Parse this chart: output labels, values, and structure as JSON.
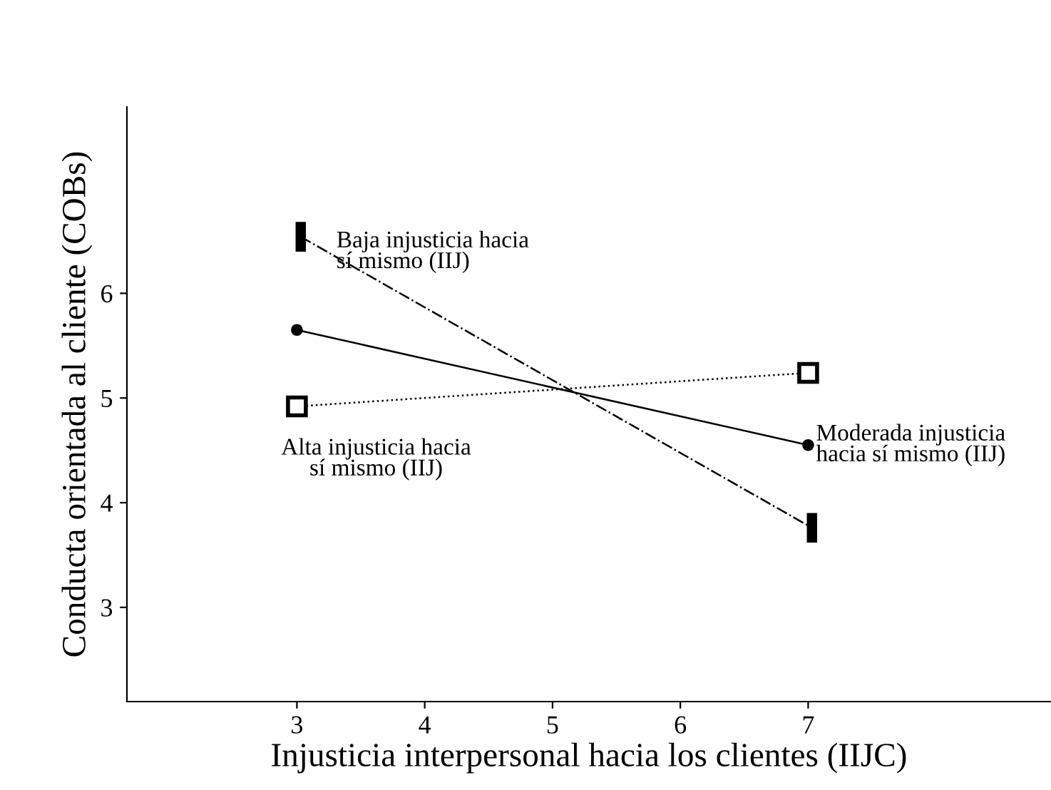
{
  "chart_data": {
    "type": "line",
    "xlabel": "Injusticia interpersonal hacia los clientes (IIJC)",
    "ylabel": "Conducta orientada al cliente (COBs)",
    "xlim": [
      1.67,
      8.9
    ],
    "ylim": [
      2.1,
      7.78
    ],
    "xticks": [
      3,
      4,
      5,
      6,
      7
    ],
    "yticks": [
      3,
      4,
      5,
      6
    ],
    "grid": false,
    "legend": false,
    "series": [
      {
        "name": "Baja injusticia hacia\nsí mismo (IIJ)",
        "x": [
          3.03,
          7.03
        ],
        "values": [
          6.54,
          3.76
        ],
        "color": "#000000",
        "line_style": "dashdot",
        "marker": "square"
      },
      {
        "name": "Moderada injusticia\nhacia sí mismo (IIJ)",
        "x": [
          3,
          7
        ],
        "values": [
          5.65,
          4.55
        ],
        "color": "#000000",
        "line_style": "solid",
        "marker": "circle"
      },
      {
        "name": "Alta injusticia hacia\nsí mismo (IIJ)",
        "x": [
          3,
          7
        ],
        "values": [
          4.92,
          5.24
        ],
        "color": "#000000",
        "line_style": "dotted",
        "marker": "square"
      }
    ]
  }
}
